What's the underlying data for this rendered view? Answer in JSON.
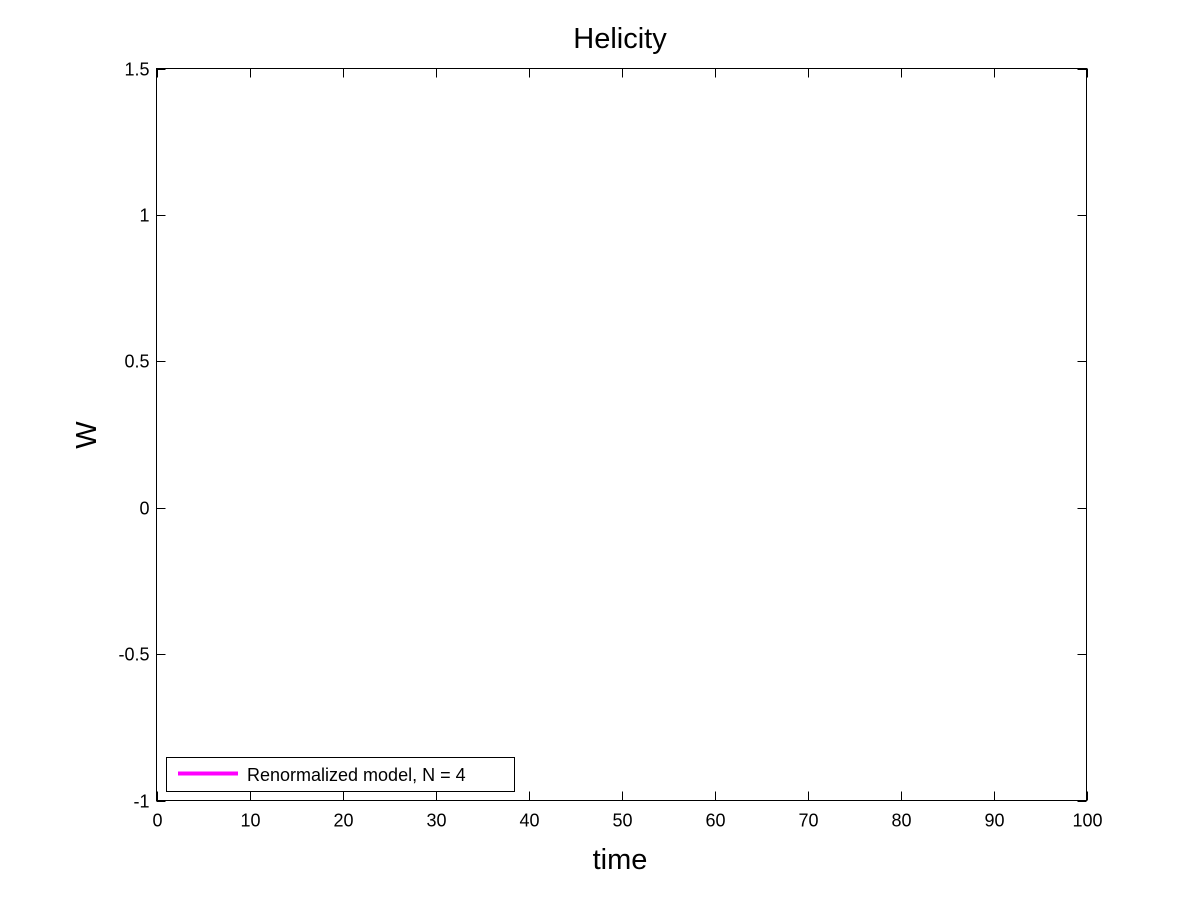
{
  "chart_data": {
    "type": "line",
    "title": "Helicity",
    "xlabel": "time",
    "ylabel": "W",
    "xlim": [
      0,
      100
    ],
    "ylim": [
      -1,
      1.5
    ],
    "x_ticks": [
      0,
      10,
      20,
      30,
      40,
      50,
      60,
      70,
      80,
      90,
      100
    ],
    "y_ticks": [
      -1,
      -0.5,
      0,
      0.5,
      1,
      1.5
    ],
    "x_tick_labels": [
      "0",
      "10",
      "20",
      "30",
      "40",
      "50",
      "60",
      "70",
      "80",
      "90",
      "100"
    ],
    "y_tick_labels": [
      "-1",
      "-0.5",
      "0",
      "0.5",
      "1",
      "1.5"
    ],
    "grid": false,
    "legend": {
      "position": "bottom-left",
      "entries": [
        {
          "label": "Renormalized model, N = 4",
          "color": "#ff00ff"
        }
      ]
    },
    "series": [
      {
        "name": "Renormalized model, N = 4",
        "color": "#ff00ff",
        "x": [],
        "y": []
      }
    ]
  }
}
